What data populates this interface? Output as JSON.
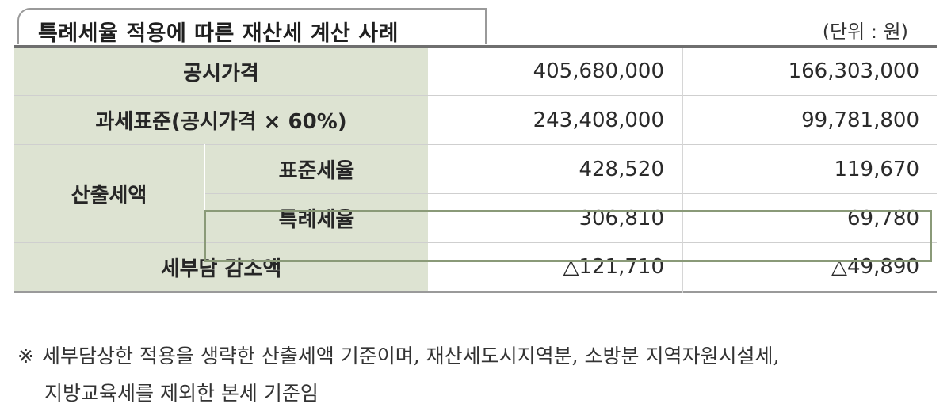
{
  "title": "특례세율 적용에 따른 재산세 계산 사례",
  "unit": "(단위 : 원)",
  "rows": {
    "official_price": {
      "label": "공시가격",
      "values": [
        "405,680,000",
        "166,303,000"
      ]
    },
    "tax_base": {
      "label": "과세표준(공시가격 × 60%)",
      "values": [
        "243,408,000",
        "99,781,800"
      ]
    },
    "calculated_tax": {
      "label": "산출세액",
      "standard": {
        "label": "표준세율",
        "values": [
          "428,520",
          "119,670"
        ]
      },
      "special": {
        "label": "특례세율",
        "values": [
          "306,810",
          "69,780"
        ]
      }
    },
    "tax_reduction": {
      "label": "세부담 감소액",
      "values": [
        "△121,710",
        "△49,890"
      ]
    }
  },
  "footnote": {
    "mark": "※",
    "line1": "세부담상한 적용을 생략한 산출세액 기준이며, 재산세도시지역분, 소방분 지역자원시설세,",
    "line2": "지방교육세를 제외한 본세 기준임"
  },
  "colors": {
    "header_bg": "#dde3d2",
    "highlight_border": "#8a9a78"
  }
}
